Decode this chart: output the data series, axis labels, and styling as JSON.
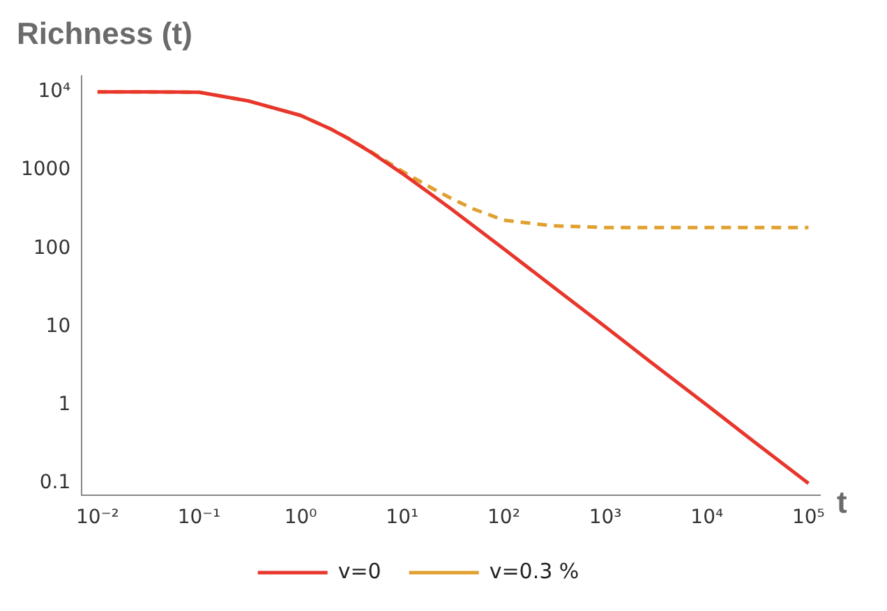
{
  "chart_data": {
    "type": "line",
    "title": "Richness (t)",
    "xlabel": "t",
    "log": "xy",
    "legend": "bottom",
    "marker": "none",
    "x": [
      0.01,
      0.03,
      0.1,
      0.3,
      1,
      2,
      3,
      5,
      10,
      20,
      30,
      50,
      100,
      300,
      1000,
      3000,
      10000,
      30000,
      100000
    ],
    "series": [
      {
        "name": "v=0",
        "color": "#e8362c",
        "line_style": "solid",
        "values": [
          10000,
          9970,
          9900,
          7700,
          5000,
          3330,
          2500,
          1670,
          910,
          476,
          323,
          196,
          99,
          33,
          10,
          3.3,
          1,
          0.33,
          0.1
        ]
      },
      {
        "name": "v=0.3 %",
        "color": "#e0a030",
        "line_style": "dashed",
        "values": [
          10000,
          9970,
          9900,
          7700,
          5000,
          3340,
          2520,
          1700,
          970,
          580,
          440,
          320,
          230,
          195,
          185,
          185,
          185,
          185,
          185
        ]
      }
    ],
    "xlim": [
      0.007,
      130000
    ],
    "ylim": [
      0.07,
      16000
    ],
    "xticks": [
      {
        "value": 0.01,
        "label": "10⁻²"
      },
      {
        "value": 0.1,
        "label": "10⁻¹"
      },
      {
        "value": 1,
        "label": "10⁰"
      },
      {
        "value": 10,
        "label": "10¹"
      },
      {
        "value": 100,
        "label": "10²"
      },
      {
        "value": 1000,
        "label": "10³"
      },
      {
        "value": 10000,
        "label": "10⁴"
      },
      {
        "value": 100000,
        "label": "10⁵"
      }
    ],
    "yticks": [
      0.1,
      1,
      10,
      100,
      1000,
      {
        "value": 10000,
        "label": "10⁴"
      }
    ]
  }
}
